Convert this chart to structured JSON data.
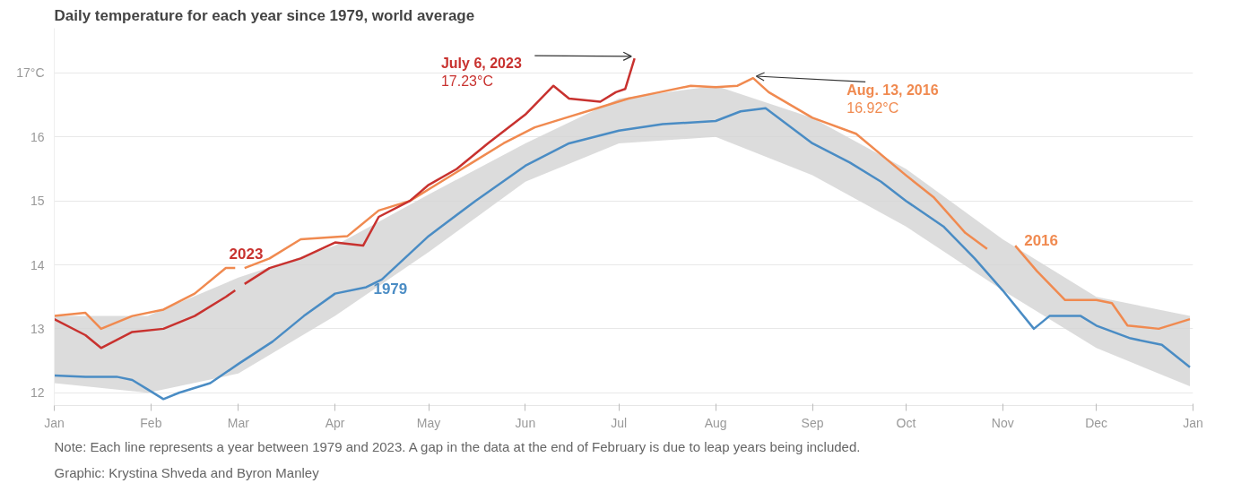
{
  "chart_data": {
    "type": "line",
    "title": "Daily temperature for each year since 1979, world average",
    "xlim": [
      "2023-01-01",
      "2024-01-01"
    ],
    "ylim": [
      11.8,
      17.7
    ],
    "xticks": [
      {
        "value": "2023-01-01",
        "label": "Jan"
      },
      {
        "value": "2023-02-01",
        "label": "Feb"
      },
      {
        "value": "2023-03-01",
        "label": "Mar"
      },
      {
        "value": "2023-04-01",
        "label": "Apr"
      },
      {
        "value": "2023-05-01",
        "label": "May"
      },
      {
        "value": "2023-06-01",
        "label": "Jun"
      },
      {
        "value": "2023-07-01",
        "label": "Jul"
      },
      {
        "value": "2023-08-01",
        "label": "Aug"
      },
      {
        "value": "2023-09-01",
        "label": "Sep"
      },
      {
        "value": "2023-10-01",
        "label": "Oct"
      },
      {
        "value": "2023-11-01",
        "label": "Nov"
      },
      {
        "value": "2023-12-01",
        "label": "Dec"
      },
      {
        "value": "2024-01-01",
        "label": "Jan"
      }
    ],
    "yticks": [
      12,
      13,
      14,
      15,
      16,
      {
        "value": 17,
        "label": "17°C"
      }
    ],
    "grid": "y",
    "line_style": "solid",
    "marker": "none",
    "series": [
      {
        "type": "area",
        "color": "#d3d3d3",
        "x": [
          "2023-01-01",
          "2023-01-31",
          "2023-03-01",
          "2023-04-01",
          "2023-05-01",
          "2023-06-01",
          "2023-07-01",
          "2023-08-01",
          "2023-09-01",
          "2023-10-01",
          "2023-11-01",
          "2023-12-01",
          "2023-12-31"
        ],
        "values": [
          null,
          null,
          null,
          null,
          null,
          null,
          null,
          null,
          null,
          null,
          null,
          null,
          null
        ],
        "lower": [
          12.15,
          12.0,
          12.3,
          13.2,
          14.2,
          15.3,
          15.9,
          16.0,
          15.4,
          14.6,
          13.6,
          12.7,
          12.1
        ],
        "upper": [
          13.2,
          13.2,
          13.8,
          14.3,
          15.1,
          15.9,
          16.6,
          16.8,
          16.3,
          15.5,
          14.4,
          13.5,
          13.2
        ]
      },
      {
        "name": "1979",
        "color": "#4a8cc4",
        "x": [
          "2023-01-01",
          "2023-01-11",
          "2023-01-21",
          "2023-01-26",
          "2023-01-31",
          "2023-02-05",
          "2023-02-10",
          "2023-02-20",
          "2023-03-01",
          "2023-03-12",
          "2023-03-22",
          "2023-04-01",
          "2023-04-11",
          "2023-04-16",
          "2023-05-01",
          "2023-05-16",
          "2023-06-01",
          "2023-06-15",
          "2023-07-01",
          "2023-07-15",
          "2023-08-01",
          "2023-08-09",
          "2023-08-17",
          "2023-09-01",
          "2023-09-13",
          "2023-09-23",
          "2023-10-01",
          "2023-10-13",
          "2023-10-23",
          "2023-11-01",
          "2023-11-11",
          "2023-11-16",
          "2023-11-26",
          "2023-12-01",
          "2023-12-12",
          "2023-12-22",
          "2023-12-31"
        ],
        "values": [
          12.27,
          12.25,
          12.25,
          12.2,
          12.05,
          11.9,
          12.0,
          12.15,
          12.45,
          12.8,
          13.2,
          13.55,
          13.65,
          13.77,
          14.45,
          15.0,
          15.55,
          15.9,
          16.1,
          16.2,
          16.25,
          16.4,
          16.45,
          15.9,
          15.6,
          15.3,
          15.0,
          14.6,
          14.1,
          13.6,
          13.0,
          13.2,
          13.2,
          13.05,
          12.85,
          12.75,
          12.4
        ]
      },
      {
        "name": "2016",
        "color": "#f08a50",
        "x": [
          "2023-01-01",
          "2023-01-11",
          "2023-01-16",
          "2023-01-26",
          "2023-02-05",
          "2023-02-15",
          "2023-02-25",
          "2023-02-28",
          "2023-03-01",
          "2023-03-03",
          "2023-03-11",
          "2023-03-21",
          "2023-04-05",
          "2023-04-15",
          "2023-04-25",
          "2023-05-05",
          "2023-05-15",
          "2023-05-25",
          "2023-06-04",
          "2023-06-14",
          "2023-06-24",
          "2023-07-04",
          "2023-07-14",
          "2023-07-24",
          "2023-08-01",
          "2023-08-08",
          "2023-08-13",
          "2023-08-18",
          "2023-09-01",
          "2023-09-15",
          "2023-10-01",
          "2023-10-10",
          "2023-10-20",
          "2023-10-27",
          "2023-11-01",
          "2023-11-05",
          "2023-11-12",
          "2023-11-21",
          "2023-12-01",
          "2023-12-06",
          "2023-12-11",
          "2023-12-21",
          "2023-12-31"
        ],
        "values": [
          13.2,
          13.25,
          13.0,
          13.2,
          13.3,
          13.55,
          13.95,
          13.95,
          null,
          13.95,
          14.1,
          14.4,
          14.45,
          14.85,
          15.0,
          15.3,
          15.6,
          15.9,
          16.15,
          16.3,
          16.45,
          16.6,
          16.7,
          16.8,
          16.78,
          16.8,
          16.92,
          16.7,
          16.3,
          16.05,
          15.4,
          15.05,
          14.5,
          14.25,
          null,
          14.3,
          13.9,
          13.45,
          13.45,
          13.4,
          13.05,
          13.0,
          13.15
        ]
      },
      {
        "name": "2023",
        "color": "#c8322f",
        "x": [
          "2023-01-01",
          "2023-01-11",
          "2023-01-16",
          "2023-01-26",
          "2023-02-05",
          "2023-02-15",
          "2023-02-25",
          "2023-02-28",
          "2023-03-01",
          "2023-03-03",
          "2023-03-11",
          "2023-03-21",
          "2023-04-01",
          "2023-04-10",
          "2023-04-15",
          "2023-04-25",
          "2023-05-01",
          "2023-05-10",
          "2023-05-20",
          "2023-06-01",
          "2023-06-10",
          "2023-06-15",
          "2023-06-25",
          "2023-06-30",
          "2023-07-03",
          "2023-07-06"
        ],
        "values": [
          13.15,
          12.9,
          12.7,
          12.95,
          13.0,
          13.2,
          13.5,
          13.6,
          null,
          13.7,
          13.95,
          14.1,
          14.35,
          14.3,
          14.75,
          15.0,
          15.25,
          15.5,
          15.9,
          16.35,
          16.8,
          16.6,
          16.55,
          16.7,
          16.75,
          17.23
        ]
      }
    ],
    "annotations": [
      {
        "text": "July 6, 2023\n17.23°C",
        "x": "2023-07-06",
        "y": 17.23
      },
      {
        "text": "Aug. 13, 2016\n16.92°C",
        "x": "2023-08-13",
        "y": 16.92
      },
      "Note: Each line represents a year between 1979 and 2023. A gap in the data at the end of February is due to leap years being included.",
      "Graphic: Krystina Shveda and Byron Manley"
    ]
  }
}
